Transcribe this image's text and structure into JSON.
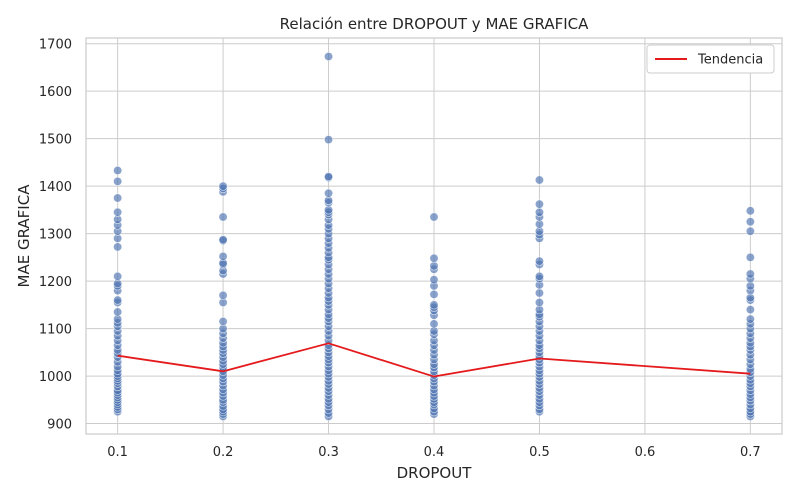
{
  "chart_data": {
    "type": "scatter",
    "title": "Relación entre DROPOUT y MAE GRAFICA",
    "xlabel": "DROPOUT",
    "ylabel": "MAE GRAFICA",
    "xlim": [
      0.07,
      0.73
    ],
    "ylim": [
      878,
      1712
    ],
    "xticks": [
      0.1,
      0.2,
      0.3,
      0.4,
      0.5,
      0.6,
      0.7
    ],
    "yticks": [
      900,
      1000,
      1100,
      1200,
      1300,
      1400,
      1500,
      1600,
      1700
    ],
    "grid": true,
    "legend_position": "top-right",
    "colors": {
      "points": "#4c72b0",
      "trend": "#e41a1c",
      "grid": "#cccccc",
      "frame": "#cccccc"
    },
    "series": [
      {
        "kind": "scatter",
        "points": [
          [
            0.1,
            925
          ],
          [
            0.1,
            930
          ],
          [
            0.1,
            935
          ],
          [
            0.1,
            940
          ],
          [
            0.1,
            945
          ],
          [
            0.1,
            950
          ],
          [
            0.1,
            955
          ],
          [
            0.1,
            960
          ],
          [
            0.1,
            965
          ],
          [
            0.1,
            970
          ],
          [
            0.1,
            978
          ],
          [
            0.1,
            985
          ],
          [
            0.1,
            990
          ],
          [
            0.1,
            995
          ],
          [
            0.1,
            1000
          ],
          [
            0.1,
            1005
          ],
          [
            0.1,
            1012
          ],
          [
            0.1,
            1020
          ],
          [
            0.1,
            1030
          ],
          [
            0.1,
            1040
          ],
          [
            0.1,
            1048
          ],
          [
            0.1,
            1055
          ],
          [
            0.1,
            1065
          ],
          [
            0.1,
            1075
          ],
          [
            0.1,
            1085
          ],
          [
            0.1,
            1095
          ],
          [
            0.1,
            1105
          ],
          [
            0.1,
            1112
          ],
          [
            0.1,
            1120
          ],
          [
            0.1,
            1135
          ],
          [
            0.1,
            1155
          ],
          [
            0.1,
            1160
          ],
          [
            0.1,
            1180
          ],
          [
            0.1,
            1190
          ],
          [
            0.1,
            1195
          ],
          [
            0.1,
            1210
          ],
          [
            0.1,
            1272
          ],
          [
            0.1,
            1290
          ],
          [
            0.1,
            1305
          ],
          [
            0.1,
            1318
          ],
          [
            0.1,
            1330
          ],
          [
            0.1,
            1345
          ],
          [
            0.1,
            1375
          ],
          [
            0.1,
            1410
          ],
          [
            0.1,
            1433
          ],
          [
            0.2,
            915
          ],
          [
            0.2,
            920
          ],
          [
            0.2,
            925
          ],
          [
            0.2,
            930
          ],
          [
            0.2,
            937
          ],
          [
            0.2,
            945
          ],
          [
            0.2,
            950
          ],
          [
            0.2,
            958
          ],
          [
            0.2,
            965
          ],
          [
            0.2,
            972
          ],
          [
            0.2,
            980
          ],
          [
            0.2,
            988
          ],
          [
            0.2,
            995
          ],
          [
            0.2,
            1002
          ],
          [
            0.2,
            1010
          ],
          [
            0.2,
            1018
          ],
          [
            0.2,
            1025
          ],
          [
            0.2,
            1032
          ],
          [
            0.2,
            1040
          ],
          [
            0.2,
            1048
          ],
          [
            0.2,
            1055
          ],
          [
            0.2,
            1062
          ],
          [
            0.2,
            1070
          ],
          [
            0.2,
            1080
          ],
          [
            0.2,
            1090
          ],
          [
            0.2,
            1100
          ],
          [
            0.2,
            1115
          ],
          [
            0.2,
            1155
          ],
          [
            0.2,
            1170
          ],
          [
            0.2,
            1215
          ],
          [
            0.2,
            1222
          ],
          [
            0.2,
            1235
          ],
          [
            0.2,
            1238
          ],
          [
            0.2,
            1252
          ],
          [
            0.2,
            1285
          ],
          [
            0.2,
            1287
          ],
          [
            0.2,
            1335
          ],
          [
            0.2,
            1388
          ],
          [
            0.2,
            1395
          ],
          [
            0.2,
            1400
          ],
          [
            0.3,
            915
          ],
          [
            0.3,
            922
          ],
          [
            0.3,
            930
          ],
          [
            0.3,
            938
          ],
          [
            0.3,
            945
          ],
          [
            0.3,
            952
          ],
          [
            0.3,
            960
          ],
          [
            0.3,
            968
          ],
          [
            0.3,
            975
          ],
          [
            0.3,
            983
          ],
          [
            0.3,
            990
          ],
          [
            0.3,
            998
          ],
          [
            0.3,
            1005
          ],
          [
            0.3,
            1012
          ],
          [
            0.3,
            1020
          ],
          [
            0.3,
            1028
          ],
          [
            0.3,
            1035
          ],
          [
            0.3,
            1042
          ],
          [
            0.3,
            1050
          ],
          [
            0.3,
            1058
          ],
          [
            0.3,
            1065
          ],
          [
            0.3,
            1075
          ],
          [
            0.3,
            1085
          ],
          [
            0.3,
            1095
          ],
          [
            0.3,
            1105
          ],
          [
            0.3,
            1115
          ],
          [
            0.3,
            1122
          ],
          [
            0.3,
            1130
          ],
          [
            0.3,
            1140
          ],
          [
            0.3,
            1150
          ],
          [
            0.3,
            1158
          ],
          [
            0.3,
            1165
          ],
          [
            0.3,
            1175
          ],
          [
            0.3,
            1185
          ],
          [
            0.3,
            1195
          ],
          [
            0.3,
            1205
          ],
          [
            0.3,
            1215
          ],
          [
            0.3,
            1225
          ],
          [
            0.3,
            1235
          ],
          [
            0.3,
            1245
          ],
          [
            0.3,
            1250
          ],
          [
            0.3,
            1260
          ],
          [
            0.3,
            1270
          ],
          [
            0.3,
            1280
          ],
          [
            0.3,
            1290
          ],
          [
            0.3,
            1300
          ],
          [
            0.3,
            1310
          ],
          [
            0.3,
            1318
          ],
          [
            0.3,
            1330
          ],
          [
            0.3,
            1340
          ],
          [
            0.3,
            1345
          ],
          [
            0.3,
            1350
          ],
          [
            0.3,
            1365
          ],
          [
            0.3,
            1370
          ],
          [
            0.3,
            1385
          ],
          [
            0.3,
            1418
          ],
          [
            0.3,
            1420
          ],
          [
            0.3,
            1498
          ],
          [
            0.3,
            1673
          ],
          [
            0.4,
            920
          ],
          [
            0.4,
            925
          ],
          [
            0.4,
            932
          ],
          [
            0.4,
            940
          ],
          [
            0.4,
            945
          ],
          [
            0.4,
            952
          ],
          [
            0.4,
            958
          ],
          [
            0.4,
            965
          ],
          [
            0.4,
            972
          ],
          [
            0.4,
            980
          ],
          [
            0.4,
            988
          ],
          [
            0.4,
            995
          ],
          [
            0.4,
            1002
          ],
          [
            0.4,
            1010
          ],
          [
            0.4,
            1018
          ],
          [
            0.4,
            1025
          ],
          [
            0.4,
            1035
          ],
          [
            0.4,
            1045
          ],
          [
            0.4,
            1055
          ],
          [
            0.4,
            1065
          ],
          [
            0.4,
            1075
          ],
          [
            0.4,
            1088
          ],
          [
            0.4,
            1095
          ],
          [
            0.4,
            1110
          ],
          [
            0.4,
            1128
          ],
          [
            0.4,
            1138
          ],
          [
            0.4,
            1145
          ],
          [
            0.4,
            1150
          ],
          [
            0.4,
            1172
          ],
          [
            0.4,
            1190
          ],
          [
            0.4,
            1203
          ],
          [
            0.4,
            1225
          ],
          [
            0.4,
            1232
          ],
          [
            0.4,
            1248
          ],
          [
            0.4,
            1335
          ],
          [
            0.5,
            925
          ],
          [
            0.5,
            930
          ],
          [
            0.5,
            938
          ],
          [
            0.5,
            945
          ],
          [
            0.5,
            952
          ],
          [
            0.5,
            960
          ],
          [
            0.5,
            968
          ],
          [
            0.5,
            975
          ],
          [
            0.5,
            983
          ],
          [
            0.5,
            990
          ],
          [
            0.5,
            998
          ],
          [
            0.5,
            1005
          ],
          [
            0.5,
            1012
          ],
          [
            0.5,
            1020
          ],
          [
            0.5,
            1028
          ],
          [
            0.5,
            1035
          ],
          [
            0.5,
            1042
          ],
          [
            0.5,
            1050
          ],
          [
            0.5,
            1058
          ],
          [
            0.5,
            1065
          ],
          [
            0.5,
            1075
          ],
          [
            0.5,
            1085
          ],
          [
            0.5,
            1095
          ],
          [
            0.5,
            1105
          ],
          [
            0.5,
            1115
          ],
          [
            0.5,
            1125
          ],
          [
            0.5,
            1130
          ],
          [
            0.5,
            1140
          ],
          [
            0.5,
            1155
          ],
          [
            0.5,
            1175
          ],
          [
            0.5,
            1192
          ],
          [
            0.5,
            1205
          ],
          [
            0.5,
            1210
          ],
          [
            0.5,
            1235
          ],
          [
            0.5,
            1242
          ],
          [
            0.5,
            1290
          ],
          [
            0.5,
            1298
          ],
          [
            0.5,
            1305
          ],
          [
            0.5,
            1320
          ],
          [
            0.5,
            1335
          ],
          [
            0.5,
            1345
          ],
          [
            0.5,
            1362
          ],
          [
            0.5,
            1413
          ],
          [
            0.7,
            915
          ],
          [
            0.7,
            920
          ],
          [
            0.7,
            925
          ],
          [
            0.7,
            932
          ],
          [
            0.7,
            940
          ],
          [
            0.7,
            948
          ],
          [
            0.7,
            955
          ],
          [
            0.7,
            962
          ],
          [
            0.7,
            970
          ],
          [
            0.7,
            978
          ],
          [
            0.7,
            985
          ],
          [
            0.7,
            992
          ],
          [
            0.7,
            1000
          ],
          [
            0.7,
            1008
          ],
          [
            0.7,
            1015
          ],
          [
            0.7,
            1025
          ],
          [
            0.7,
            1035
          ],
          [
            0.7,
            1045
          ],
          [
            0.7,
            1055
          ],
          [
            0.7,
            1062
          ],
          [
            0.7,
            1070
          ],
          [
            0.7,
            1080
          ],
          [
            0.7,
            1090
          ],
          [
            0.7,
            1100
          ],
          [
            0.7,
            1110
          ],
          [
            0.7,
            1120
          ],
          [
            0.7,
            1140
          ],
          [
            0.7,
            1160
          ],
          [
            0.7,
            1165
          ],
          [
            0.7,
            1180
          ],
          [
            0.7,
            1190
          ],
          [
            0.7,
            1205
          ],
          [
            0.7,
            1215
          ],
          [
            0.7,
            1250
          ],
          [
            0.7,
            1305
          ],
          [
            0.7,
            1325
          ],
          [
            0.7,
            1348
          ]
        ]
      },
      {
        "kind": "line",
        "name": "Tendencia",
        "x": [
          0.1,
          0.2,
          0.3,
          0.4,
          0.5,
          0.7
        ],
        "y": [
          1043,
          1010,
          1069,
          999,
          1037,
          1005
        ]
      }
    ]
  }
}
